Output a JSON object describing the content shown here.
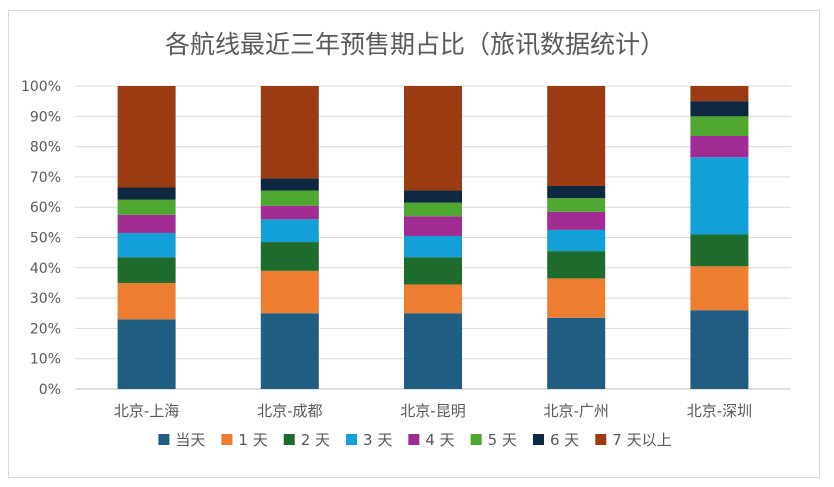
{
  "chart_data": {
    "type": "bar",
    "stacked": true,
    "percent": true,
    "title": "各航线最近三年预售期占比（旅讯数据统计）",
    "categories": [
      "北京-上海",
      "北京-成都",
      "北京-昆明",
      "北京-广州",
      "北京-深圳"
    ],
    "ylim": [
      0,
      100
    ],
    "y_ticks": [
      "0%",
      "10%",
      "20%",
      "30%",
      "40%",
      "50%",
      "60%",
      "70%",
      "80%",
      "90%",
      "100%"
    ],
    "grid": true,
    "legend_position": "bottom",
    "series": [
      {
        "name": "当天",
        "color": "#1f5e82",
        "values": [
          23,
          25,
          25,
          23.5,
          26
        ]
      },
      {
        "name": "1 天",
        "color": "#ed7d31",
        "values": [
          12,
          14,
          9.5,
          13,
          14.5
        ]
      },
      {
        "name": "2 天",
        "color": "#1e6b2e",
        "values": [
          8.5,
          9.5,
          9,
          9,
          10.5
        ]
      },
      {
        "name": "3 天",
        "color": "#13a0d8",
        "values": [
          8,
          7.5,
          7,
          7,
          25.5
        ]
      },
      {
        "name": "4 天",
        "color": "#a02b93",
        "values": [
          6,
          4.5,
          6.5,
          6,
          7
        ]
      },
      {
        "name": "5 天",
        "color": "#4ea72e",
        "values": [
          5,
          5,
          4.5,
          4.5,
          6.5
        ]
      },
      {
        "name": "6 天",
        "color": "#0e2841",
        "values": [
          4,
          4,
          4,
          4,
          5
        ]
      },
      {
        "name": "7 天以上",
        "color": "#9b3b12",
        "values": [
          33.5,
          30.5,
          34.5,
          33,
          5
        ]
      }
    ]
  }
}
